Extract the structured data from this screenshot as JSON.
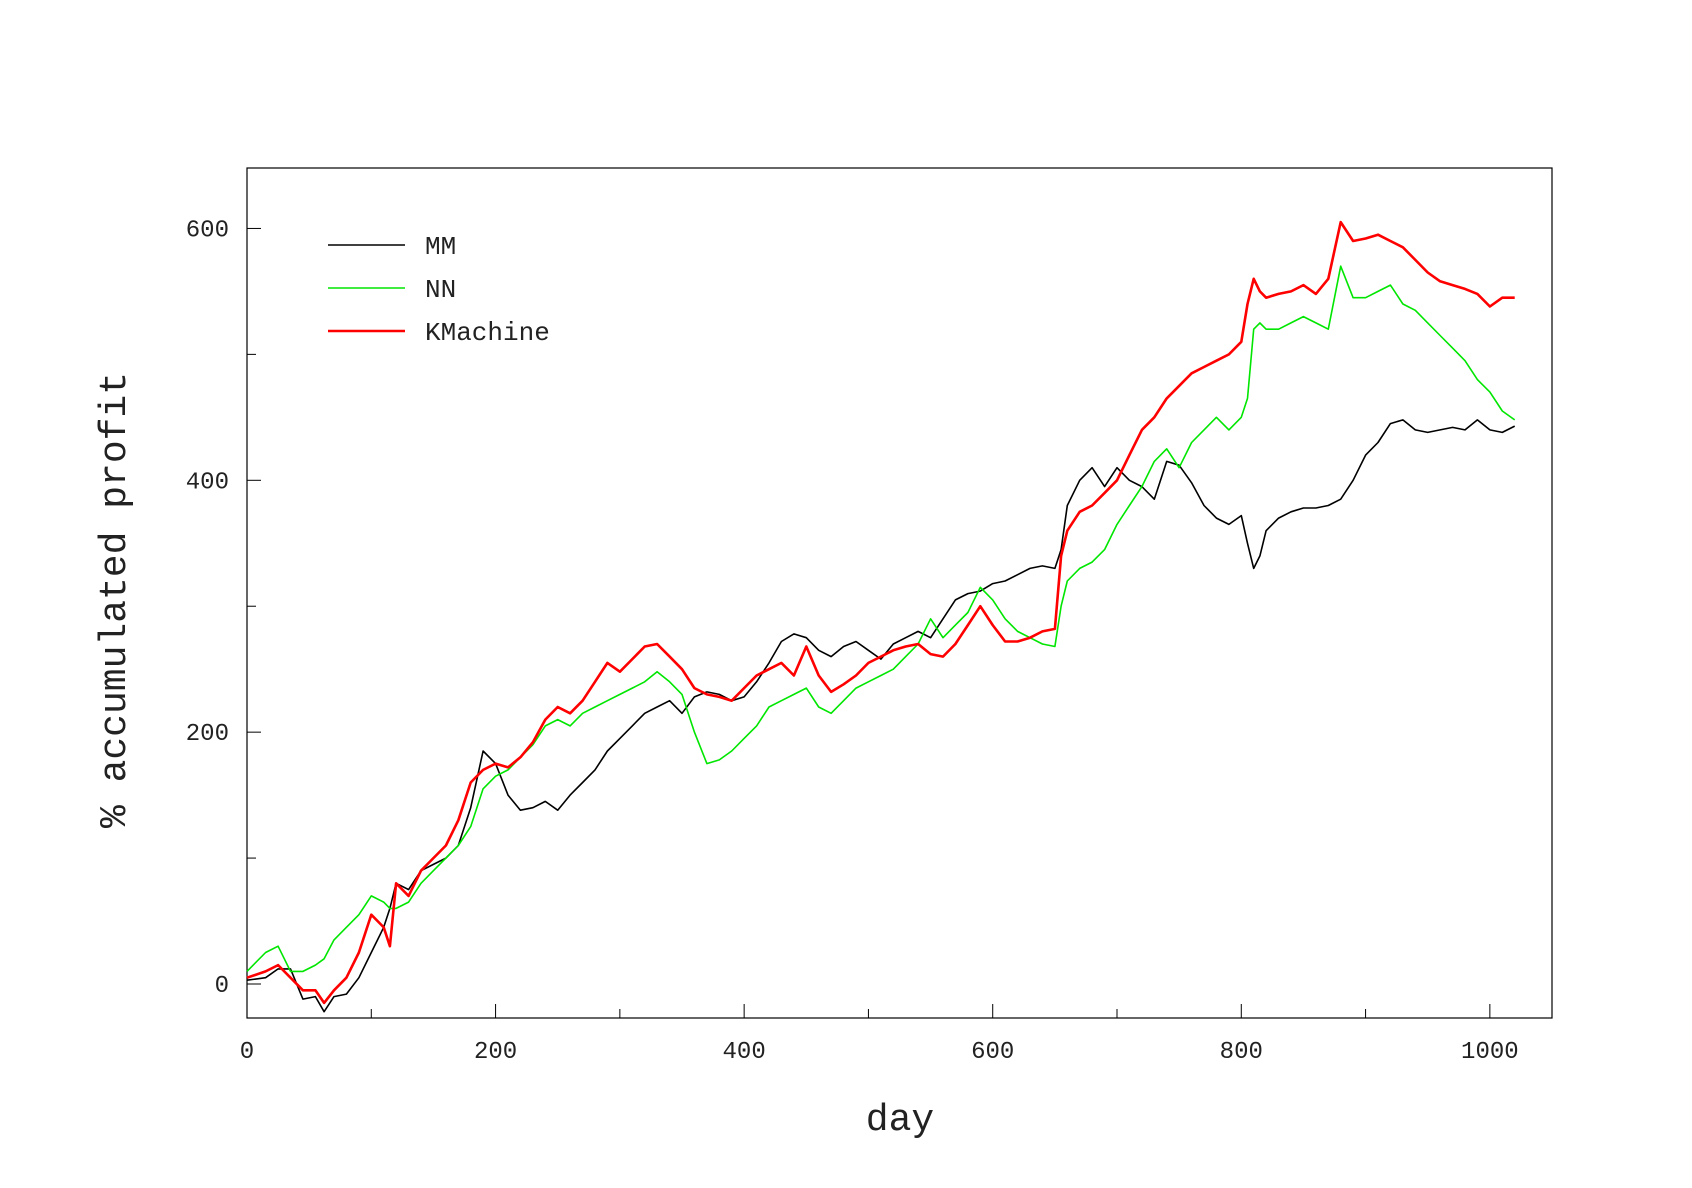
{
  "chart_data": {
    "type": "line",
    "xlabel": "day",
    "ylabel": "% accumulated profit",
    "xlim": [
      0,
      1050
    ],
    "ylim": [
      -27,
      648
    ],
    "xticks": [
      0,
      200,
      400,
      600,
      800,
      1000
    ],
    "yticks": [
      0,
      200,
      400,
      600
    ],
    "grid": false,
    "legend": "top-left",
    "series": [
      {
        "name": "MM",
        "color": "#000000",
        "x": [
          0,
          15,
          25,
          35,
          45,
          55,
          62,
          70,
          80,
          90,
          100,
          110,
          115,
          120,
          130,
          140,
          150,
          160,
          170,
          180,
          190,
          200,
          210,
          220,
          230,
          240,
          250,
          260,
          270,
          280,
          290,
          300,
          310,
          320,
          330,
          340,
          350,
          360,
          370,
          380,
          390,
          400,
          410,
          420,
          430,
          440,
          450,
          460,
          470,
          480,
          490,
          500,
          510,
          520,
          530,
          540,
          550,
          560,
          570,
          580,
          590,
          600,
          610,
          620,
          630,
          640,
          650,
          655,
          660,
          670,
          680,
          690,
          700,
          710,
          720,
          730,
          740,
          750,
          760,
          770,
          780,
          790,
          800,
          805,
          810,
          815,
          820,
          830,
          840,
          850,
          860,
          870,
          880,
          890,
          900,
          910,
          920,
          930,
          940,
          950,
          960,
          970,
          980,
          990,
          1000,
          1010,
          1020
        ],
        "y": [
          3,
          5,
          12,
          12,
          -12,
          -10,
          -22,
          -10,
          -8,
          5,
          25,
          45,
          60,
          80,
          75,
          90,
          95,
          100,
          110,
          140,
          185,
          175,
          150,
          138,
          140,
          145,
          138,
          150,
          160,
          170,
          185,
          195,
          205,
          215,
          220,
          225,
          215,
          228,
          232,
          230,
          225,
          228,
          240,
          255,
          272,
          278,
          275,
          265,
          260,
          268,
          272,
          265,
          258,
          270,
          275,
          280,
          275,
          290,
          305,
          310,
          312,
          318,
          320,
          325,
          330,
          332,
          330,
          345,
          380,
          400,
          410,
          395,
          410,
          400,
          395,
          385,
          415,
          412,
          398,
          380,
          370,
          365,
          372,
          350,
          330,
          340,
          360,
          370,
          375,
          378,
          378,
          380,
          385,
          400,
          420,
          430,
          445,
          448,
          440,
          438,
          440,
          442,
          440,
          448,
          440,
          438,
          443
        ]
      },
      {
        "name": "NN",
        "color": "#00e600",
        "x": [
          0,
          15,
          25,
          35,
          45,
          55,
          62,
          70,
          80,
          90,
          100,
          110,
          115,
          120,
          130,
          140,
          150,
          160,
          170,
          180,
          190,
          200,
          210,
          220,
          230,
          240,
          250,
          260,
          270,
          280,
          290,
          300,
          310,
          320,
          330,
          340,
          350,
          360,
          370,
          380,
          390,
          400,
          410,
          420,
          430,
          440,
          450,
          460,
          470,
          480,
          490,
          500,
          510,
          520,
          530,
          540,
          550,
          560,
          570,
          580,
          590,
          600,
          610,
          620,
          630,
          640,
          650,
          655,
          660,
          670,
          680,
          690,
          700,
          710,
          720,
          730,
          740,
          750,
          760,
          770,
          780,
          790,
          800,
          805,
          810,
          815,
          820,
          830,
          840,
          850,
          860,
          870,
          880,
          890,
          900,
          910,
          920,
          930,
          940,
          950,
          960,
          970,
          980,
          990,
          1000,
          1010,
          1020
        ],
        "y": [
          10,
          25,
          30,
          10,
          10,
          15,
          20,
          35,
          45,
          55,
          70,
          65,
          60,
          60,
          65,
          80,
          90,
          100,
          110,
          125,
          155,
          165,
          170,
          180,
          190,
          205,
          210,
          205,
          215,
          220,
          225,
          230,
          235,
          240,
          248,
          240,
          230,
          200,
          175,
          178,
          185,
          195,
          205,
          220,
          225,
          230,
          235,
          220,
          215,
          225,
          235,
          240,
          245,
          250,
          260,
          270,
          290,
          275,
          285,
          295,
          315,
          305,
          290,
          280,
          275,
          270,
          268,
          300,
          320,
          330,
          335,
          345,
          365,
          380,
          395,
          415,
          425,
          410,
          430,
          440,
          450,
          440,
          450,
          465,
          520,
          525,
          520,
          520,
          525,
          530,
          525,
          520,
          570,
          545,
          545,
          550,
          555,
          540,
          535,
          525,
          515,
          505,
          495,
          480,
          470,
          455,
          448
        ]
      },
      {
        "name": "KMachine",
        "color": "#ff0000",
        "x": [
          0,
          15,
          25,
          35,
          45,
          55,
          62,
          70,
          80,
          90,
          100,
          110,
          115,
          120,
          130,
          140,
          150,
          160,
          170,
          180,
          190,
          200,
          210,
          220,
          230,
          240,
          250,
          260,
          270,
          280,
          290,
          300,
          310,
          320,
          330,
          340,
          350,
          360,
          370,
          380,
          390,
          400,
          410,
          420,
          430,
          440,
          450,
          460,
          470,
          480,
          490,
          500,
          510,
          520,
          530,
          540,
          550,
          560,
          570,
          580,
          590,
          600,
          610,
          620,
          630,
          640,
          650,
          655,
          660,
          670,
          680,
          690,
          700,
          710,
          720,
          730,
          740,
          750,
          760,
          770,
          780,
          790,
          800,
          805,
          810,
          815,
          820,
          830,
          840,
          850,
          860,
          870,
          880,
          890,
          900,
          910,
          920,
          930,
          940,
          950,
          960,
          970,
          980,
          990,
          1000,
          1010,
          1020
        ],
        "y": [
          5,
          10,
          15,
          5,
          -5,
          -5,
          -15,
          -5,
          5,
          25,
          55,
          45,
          30,
          80,
          70,
          90,
          100,
          110,
          130,
          160,
          170,
          175,
          172,
          180,
          192,
          210,
          220,
          215,
          225,
          240,
          255,
          248,
          258,
          268,
          270,
          260,
          250,
          235,
          230,
          228,
          225,
          235,
          245,
          250,
          255,
          245,
          268,
          245,
          232,
          238,
          245,
          255,
          260,
          265,
          268,
          270,
          262,
          260,
          270,
          285,
          300,
          285,
          272,
          272,
          275,
          280,
          282,
          340,
          360,
          375,
          380,
          390,
          400,
          420,
          440,
          450,
          465,
          475,
          485,
          490,
          495,
          500,
          510,
          540,
          560,
          550,
          545,
          548,
          550,
          555,
          548,
          560,
          605,
          590,
          592,
          595,
          590,
          585,
          575,
          565,
          558,
          555,
          552,
          548,
          538,
          545,
          545
        ]
      }
    ]
  }
}
